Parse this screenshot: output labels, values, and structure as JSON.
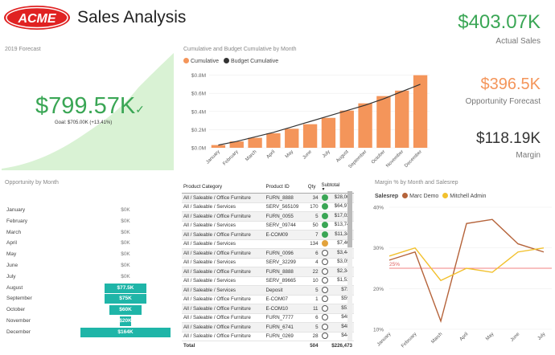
{
  "header": {
    "logo_text": "ACME",
    "title": "Sales Analysis"
  },
  "kpis": {
    "actual": {
      "value": "$403.07K",
      "label": "Actual Sales"
    },
    "opportunity": {
      "value": "$396.5K",
      "label": "Opportunity Forecast"
    },
    "margin": {
      "value": "$118.19K",
      "label": "Margin"
    }
  },
  "forecast": {
    "title": "2019 Forecast",
    "value": "$799.57K",
    "goal": "Goal: $705.00K (+13.41%)",
    "colors": {
      "area": "#d9f2d4",
      "value": "#3aa655"
    }
  },
  "cumulative": {
    "title": "Cumulative and Budget Cumulative by Month",
    "legend": [
      {
        "label": "Cumulative",
        "color": "#f4955a"
      },
      {
        "label": "Budget Cumulative",
        "color": "#333333"
      }
    ]
  },
  "opportunity": {
    "title": "Opportunity by Month",
    "rows": [
      {
        "month": "January",
        "value": "$0K",
        "amount": 0
      },
      {
        "month": "February",
        "value": "$0K",
        "amount": 0
      },
      {
        "month": "March",
        "value": "$0K",
        "amount": 0
      },
      {
        "month": "April",
        "value": "$0K",
        "amount": 0
      },
      {
        "month": "May",
        "value": "$0K",
        "amount": 0
      },
      {
        "month": "June",
        "value": "$0K",
        "amount": 0
      },
      {
        "month": "July",
        "value": "$0K",
        "amount": 0
      },
      {
        "month": "August",
        "value": "$77.5K",
        "amount": 77.5
      },
      {
        "month": "September",
        "value": "$75K",
        "amount": 75
      },
      {
        "month": "October",
        "value": "$60K",
        "amount": 60
      },
      {
        "month": "November",
        "value": "$20K",
        "amount": 20
      },
      {
        "month": "December",
        "value": "$164K",
        "amount": 164
      }
    ],
    "bar_color": "#1fb5a8"
  },
  "table": {
    "headers": [
      "Product Category",
      "Product ID",
      "Qty",
      "Subtotal"
    ],
    "rows": [
      {
        "cat": "All / Saleable / Office Furniture",
        "id": "FURN_8888",
        "qty": "34",
        "status": "green",
        "sub": "$28,000"
      },
      {
        "cat": "All / Saleable / Services",
        "id": "SERV_565109",
        "qty": "170",
        "status": "green",
        "sub": "$64,979"
      },
      {
        "cat": "All / Saleable / Office Furniture",
        "id": "FURN_0055",
        "qty": "5",
        "status": "green",
        "sub": "$17,025"
      },
      {
        "cat": "All / Saleable / Services",
        "id": "SERV_09744",
        "qty": "50",
        "status": "green",
        "sub": "$13,749"
      },
      {
        "cat": "All / Saleable / Office Furniture",
        "id": "E-COM09",
        "qty": "7",
        "status": "green",
        "sub": "$11,343"
      },
      {
        "cat": "All / Saleable / Services",
        "id": "",
        "qty": "134",
        "status": "orange",
        "sub": "$7,403"
      },
      {
        "cat": "All / Saleable / Office Furniture",
        "id": "FURN_0096",
        "qty": "6",
        "status": "empty",
        "sub": "$3,447"
      },
      {
        "cat": "All / Saleable / Services",
        "id": "SERV_32299",
        "qty": "4",
        "status": "empty",
        "sub": "$3,058"
      },
      {
        "cat": "All / Saleable / Office Furniture",
        "id": "FURN_8888",
        "qty": "22",
        "status": "empty",
        "sub": "$2,345"
      },
      {
        "cat": "All / Saleable / Services",
        "id": "SERV_89665",
        "qty": "10",
        "status": "empty",
        "sub": "$1,529"
      },
      {
        "cat": "All / Saleable / Services",
        "id": "Deposit",
        "qty": "5",
        "status": "empty",
        "sub": "$730"
      },
      {
        "cat": "All / Saleable / Office Furniture",
        "id": "E-COM07",
        "qty": "1",
        "status": "empty",
        "sub": "$599"
      },
      {
        "cat": "All / Saleable / Office Furniture",
        "id": "E-COM10",
        "qty": "11",
        "status": "empty",
        "sub": "$517"
      },
      {
        "cat": "All / Saleable / Office Furniture",
        "id": "FURN_7777",
        "qty": "6",
        "status": "empty",
        "sub": "$488"
      },
      {
        "cat": "All / Saleable / Office Furniture",
        "id": "FURN_6741",
        "qty": "5",
        "status": "empty",
        "sub": "$488"
      },
      {
        "cat": "All / Saleable / Office Furniture",
        "id": "FURN_0269",
        "qty": "28",
        "status": "empty",
        "sub": "$440"
      }
    ],
    "total": {
      "label": "Total",
      "qty": "504",
      "sub": "$226,473"
    }
  },
  "margin": {
    "title": "Margin % by Month and Salesrep",
    "legend_title": "Salesrep",
    "reps": [
      {
        "name": "Marc Demo",
        "color": "#b5633a"
      },
      {
        "name": "Mitchell Admin",
        "color": "#f2c12e"
      }
    ],
    "reference_label": "25%"
  },
  "chart_data": [
    {
      "type": "bar",
      "title": "Cumulative and Budget Cumulative by Month",
      "categories": [
        "January",
        "February",
        "March",
        "April",
        "May",
        "June",
        "July",
        "August",
        "September",
        "October",
        "November",
        "December"
      ],
      "series": [
        {
          "name": "Cumulative",
          "type": "bar",
          "color": "#f4955a",
          "values": [
            0.03,
            0.07,
            0.11,
            0.16,
            0.21,
            0.26,
            0.33,
            0.41,
            0.49,
            0.57,
            0.63,
            0.8
          ]
        },
        {
          "name": "Budget Cumulative",
          "type": "line",
          "color": "#333333",
          "values": [
            0.03,
            0.07,
            0.12,
            0.17,
            0.23,
            0.29,
            0.35,
            0.41,
            0.47,
            0.54,
            0.62,
            0.7
          ]
        }
      ],
      "yticks": [
        "$0.0M",
        "$0.2M",
        "$0.4M",
        "$0.6M",
        "$0.8M"
      ],
      "ylim": [
        0,
        0.85
      ],
      "unit": "$M"
    },
    {
      "type": "line",
      "title": "Margin % by Month and Salesrep",
      "categories": [
        "January",
        "February",
        "March",
        "April",
        "May",
        "June",
        "July"
      ],
      "series": [
        {
          "name": "Marc Demo",
          "color": "#b5633a",
          "values": [
            27,
            29,
            12,
            36,
            37,
            31,
            29
          ]
        },
        {
          "name": "Mitchell Admin",
          "color": "#f2c12e",
          "values": [
            28,
            30,
            22,
            25,
            24,
            29,
            30
          ]
        }
      ],
      "reference_line": 25,
      "yticks": [
        "10%",
        "20%",
        "30%",
        "40%"
      ],
      "ylim": [
        10,
        40
      ]
    }
  ]
}
